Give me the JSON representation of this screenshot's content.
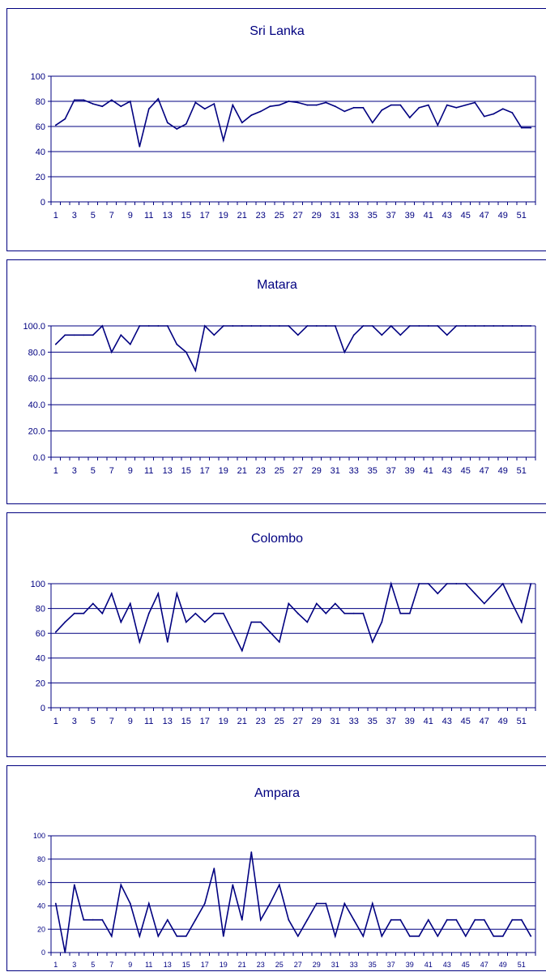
{
  "colors": {
    "line": "#000080",
    "frame": "#000080",
    "background": "#ffffff"
  },
  "chart_data": [
    {
      "type": "line",
      "title": "Sri Lanka",
      "xlabel": "",
      "ylabel": "",
      "ylim": [
        0,
        100
      ],
      "y_ticks": [
        "0",
        "20",
        "40",
        "60",
        "80",
        "100"
      ],
      "x": [
        1,
        2,
        3,
        4,
        5,
        6,
        7,
        8,
        9,
        10,
        11,
        12,
        13,
        14,
        15,
        16,
        17,
        18,
        19,
        20,
        21,
        22,
        23,
        24,
        25,
        26,
        27,
        28,
        29,
        30,
        31,
        32,
        33,
        34,
        35,
        36,
        37,
        38,
        39,
        40,
        41,
        42,
        43,
        44,
        45,
        46,
        47,
        48,
        49,
        50,
        51,
        52
      ],
      "x_tick_labels": [
        "1",
        "3",
        "5",
        "7",
        "9",
        "11",
        "13",
        "15",
        "17",
        "19",
        "21",
        "23",
        "25",
        "27",
        "29",
        "31",
        "33",
        "35",
        "37",
        "39",
        "41",
        "43",
        "45",
        "47",
        "49",
        "51"
      ],
      "grid": true,
      "series": [
        {
          "values": [
            61,
            66,
            81,
            81,
            78,
            76,
            81,
            76,
            80,
            44,
            74,
            82,
            63,
            58,
            62,
            79,
            74,
            78,
            49,
            77,
            63,
            69,
            72,
            76,
            77,
            80,
            79,
            77,
            77,
            79,
            76,
            72,
            75,
            75,
            63,
            73,
            77,
            77,
            67,
            75,
            77,
            61,
            77,
            75,
            77,
            79,
            68,
            70,
            74,
            71,
            59,
            59
          ]
        }
      ]
    },
    {
      "type": "line",
      "title": "Matara",
      "xlabel": "",
      "ylabel": "",
      "ylim": [
        0,
        100
      ],
      "y_ticks": [
        "0.0",
        "20.0",
        "40.0",
        "60.0",
        "80.0",
        "100.0"
      ],
      "x": [
        1,
        2,
        3,
        4,
        5,
        6,
        7,
        8,
        9,
        10,
        11,
        12,
        13,
        14,
        15,
        16,
        17,
        18,
        19,
        20,
        21,
        22,
        23,
        24,
        25,
        26,
        27,
        28,
        29,
        30,
        31,
        32,
        33,
        34,
        35,
        36,
        37,
        38,
        39,
        40,
        41,
        42,
        43,
        44,
        45,
        46,
        47,
        48,
        49,
        50,
        51,
        52
      ],
      "x_tick_labels": [
        "1",
        "3",
        "5",
        "7",
        "9",
        "11",
        "13",
        "15",
        "17",
        "19",
        "21",
        "23",
        "25",
        "27",
        "29",
        "31",
        "33",
        "35",
        "37",
        "39",
        "41",
        "43",
        "45",
        "47",
        "49",
        "51"
      ],
      "grid": true,
      "series": [
        {
          "values": [
            86,
            93,
            93,
            93,
            93,
            100,
            80,
            93,
            86,
            100,
            100,
            100,
            100,
            86,
            80,
            66,
            100,
            93,
            100,
            100,
            100,
            100,
            100,
            100,
            100,
            100,
            93,
            100,
            100,
            100,
            100,
            80,
            93,
            100,
            100,
            93,
            100,
            93,
            100,
            100,
            100,
            100,
            93,
            100,
            100,
            100,
            100,
            100,
            100,
            100,
            100,
            100
          ]
        }
      ]
    },
    {
      "type": "line",
      "title": "Colombo",
      "xlabel": "",
      "ylabel": "",
      "ylim": [
        0,
        100
      ],
      "y_ticks": [
        "0",
        "20",
        "40",
        "60",
        "80",
        "100"
      ],
      "x": [
        1,
        2,
        3,
        4,
        5,
        6,
        7,
        8,
        9,
        10,
        11,
        12,
        13,
        14,
        15,
        16,
        17,
        18,
        19,
        20,
        21,
        22,
        23,
        24,
        25,
        26,
        27,
        28,
        29,
        30,
        31,
        32,
        33,
        34,
        35,
        36,
        37,
        38,
        39,
        40,
        41,
        42,
        43,
        44,
        45,
        46,
        47,
        48,
        49,
        50,
        51,
        52
      ],
      "x_tick_labels": [
        "1",
        "3",
        "5",
        "7",
        "9",
        "11",
        "13",
        "15",
        "17",
        "19",
        "21",
        "23",
        "25",
        "27",
        "29",
        "31",
        "33",
        "35",
        "37",
        "39",
        "41",
        "43",
        "45",
        "47",
        "49",
        "51"
      ],
      "grid": true,
      "series": [
        {
          "values": [
            61,
            69,
            76,
            76,
            84,
            76,
            92,
            69,
            84,
            53,
            76,
            92,
            53,
            92,
            69,
            76,
            69,
            76,
            76,
            61,
            46,
            69,
            69,
            61,
            53,
            84,
            76,
            69,
            84,
            76,
            84,
            76,
            76,
            76,
            53,
            69,
            100,
            76,
            76,
            100,
            100,
            92,
            100,
            100,
            100,
            92,
            84,
            92,
            100,
            84,
            69,
            100
          ]
        }
      ]
    },
    {
      "type": "line",
      "title": "Ampara",
      "xlabel": "",
      "ylabel": "",
      "ylim": [
        0,
        100
      ],
      "y_ticks": [
        "0",
        "20",
        "40",
        "60",
        "80",
        "100"
      ],
      "x": [
        1,
        2,
        3,
        4,
        5,
        6,
        7,
        8,
        9,
        10,
        11,
        12,
        13,
        14,
        15,
        16,
        17,
        18,
        19,
        20,
        21,
        22,
        23,
        24,
        25,
        26,
        27,
        28,
        29,
        30,
        31,
        32,
        33,
        34,
        35,
        36,
        37,
        38,
        39,
        40,
        41,
        42,
        43,
        44,
        45,
        46,
        47,
        48,
        49,
        50,
        51,
        52
      ],
      "x_tick_labels": [
        "1",
        "3",
        "5",
        "7",
        "9",
        "11",
        "13",
        "15",
        "17",
        "19",
        "21",
        "23",
        "25",
        "27",
        "29",
        "31",
        "33",
        "35",
        "37",
        "39",
        "41",
        "43",
        "45",
        "47",
        "49",
        "51"
      ],
      "grid": true,
      "series": [
        {
          "values": [
            42,
            0,
            58,
            28,
            28,
            28,
            14,
            58,
            42,
            14,
            42,
            14,
            28,
            14,
            14,
            28,
            42,
            72,
            14,
            58,
            28,
            86,
            28,
            42,
            58,
            28,
            14,
            28,
            42,
            42,
            14,
            42,
            28,
            14,
            42,
            14,
            28,
            28,
            14,
            14,
            28,
            14,
            28,
            28,
            14,
            28,
            28,
            14,
            14,
            28,
            28,
            14
          ]
        }
      ]
    }
  ]
}
